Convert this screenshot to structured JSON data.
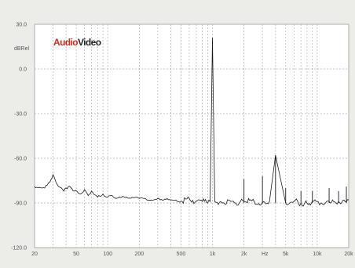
{
  "chart_data": {
    "type": "line",
    "ylabel": "dBRel",
    "xunit": "Hz",
    "x_scale": "log",
    "xlim": [
      20,
      20000
    ],
    "ylim": [
      -120,
      30
    ],
    "grid": true,
    "logo": {
      "part1": "Audio",
      "part2": "Video",
      "color1": "#d22b1f",
      "color2": "#222222"
    },
    "colors": {
      "line": "#1a1a1a",
      "grid": "#b0b0b0",
      "plot_bg": "#ffffff"
    },
    "y_ticks": [
      {
        "value": 30,
        "label": "30.0"
      },
      {
        "value": 0,
        "label": "0.0"
      },
      {
        "value": -30,
        "label": "-30.0"
      },
      {
        "value": -60,
        "label": "-60.0"
      },
      {
        "value": -90,
        "label": "-90.0"
      },
      {
        "value": -120,
        "label": "-120.0"
      }
    ],
    "x_ticks": [
      {
        "value": 20,
        "label": "20"
      },
      {
        "value": 50,
        "label": "50"
      },
      {
        "value": 100,
        "label": "100"
      },
      {
        "value": 200,
        "label": "200"
      },
      {
        "value": 500,
        "label": "500"
      },
      {
        "value": 1000,
        "label": "1k"
      },
      {
        "value": 2000,
        "label": "2k"
      },
      {
        "value": 5000,
        "label": "5k"
      },
      {
        "value": 10000,
        "label": "10k"
      },
      {
        "value": 20000,
        "label": "20k"
      }
    ],
    "series": [
      {
        "x": [
          20,
          25,
          28,
          30,
          32,
          34,
          38,
          42,
          48,
          55,
          60,
          65,
          70,
          80,
          90,
          100,
          110,
          120,
          150,
          200,
          260,
          300,
          400,
          500,
          600,
          700,
          800,
          900,
          950,
          1000,
          1050,
          1200,
          1500,
          1800,
          2000,
          2500,
          3000,
          3500,
          4000,
          5000,
          6000,
          7000,
          8000,
          10000,
          12000,
          14000,
          16000,
          18000,
          20000
        ],
        "y": [
          -79,
          -80,
          -76,
          -71,
          -76,
          -79,
          -82,
          -79,
          -82,
          -84,
          -81,
          -85,
          -82,
          -86,
          -84,
          -86,
          -85,
          -87,
          -86,
          -87,
          -88,
          -87,
          -88,
          -89,
          -87,
          -89,
          -89,
          -90,
          -89,
          21,
          -89,
          -89,
          -89,
          -90,
          -89,
          -89,
          -90,
          -89,
          -58,
          -90,
          -89,
          -90,
          -90,
          -89,
          -90,
          -88,
          -89,
          -88,
          -88
        ]
      }
    ],
    "spurs": [
      {
        "x": 2000,
        "y": -74
      },
      {
        "x": 3000,
        "y": -72
      },
      {
        "x": 4000,
        "y": -58
      },
      {
        "x": 5000,
        "y": -80
      },
      {
        "x": 7000,
        "y": -82
      },
      {
        "x": 9000,
        "y": -82
      },
      {
        "x": 13000,
        "y": -80
      },
      {
        "x": 16000,
        "y": -82
      },
      {
        "x": 19000,
        "y": -79
      }
    ]
  }
}
